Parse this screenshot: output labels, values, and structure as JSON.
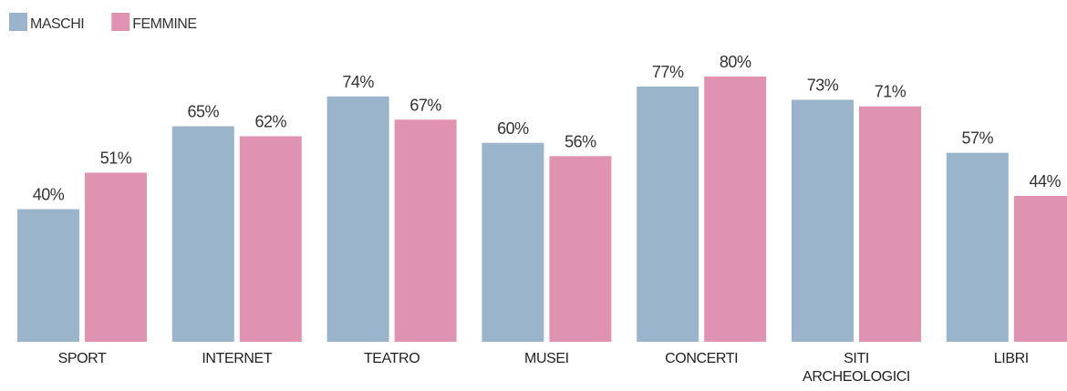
{
  "chart_data": {
    "type": "bar",
    "categories": [
      "SPORT",
      "INTERNET",
      "TEATRO",
      "MUSEI",
      "CONCERTI",
      "SITI ARCHEOLOGICI",
      "LIBRI"
    ],
    "series": [
      {
        "name": "MASCHI",
        "color": "#9ab4cc",
        "values": [
          40,
          65,
          74,
          60,
          77,
          73,
          57
        ],
        "value_labels": [
          "40%",
          "65%",
          "74%",
          "60%",
          "77%",
          "73%",
          "57%"
        ]
      },
      {
        "name": "FEMMINE",
        "color": "#df93b0",
        "values": [
          51,
          62,
          67,
          56,
          80,
          71,
          44
        ],
        "value_labels": [
          "51%",
          "62%",
          "67%",
          "56%",
          "80%",
          "71%",
          "44%"
        ]
      }
    ],
    "legend": "top-left"
  }
}
